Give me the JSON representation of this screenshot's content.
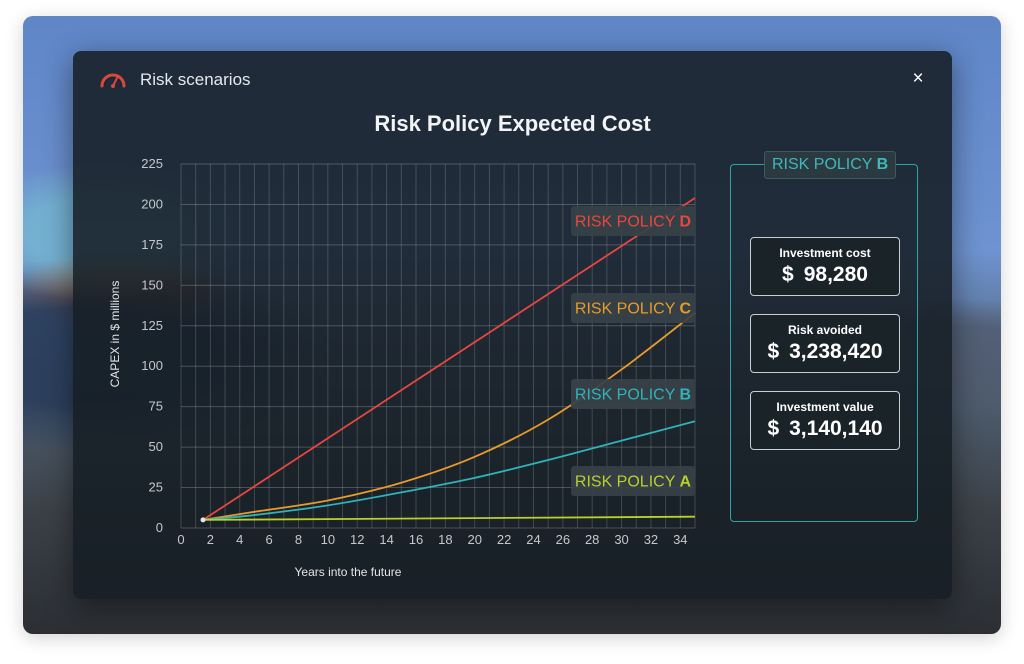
{
  "modal": {
    "title": "Risk scenarios",
    "close_label": "×"
  },
  "chart_data": {
    "type": "line",
    "title": "Risk Policy Expected Cost",
    "xlabel": "Years into the future",
    "ylabel": "CAPEX in $ millions",
    "x_ticks": [
      "0",
      "2",
      "4",
      "6",
      "8",
      "10",
      "12",
      "14",
      "16",
      "18",
      "20",
      "22",
      "24",
      "26",
      "28",
      "30",
      "32",
      "34"
    ],
    "y_ticks": [
      "0",
      "25",
      "50",
      "75",
      "100",
      "125",
      "150",
      "175",
      "200",
      "225"
    ],
    "xlim": [
      0,
      35
    ],
    "ylim": [
      0,
      225
    ],
    "grid": true,
    "series": [
      {
        "name_prefix": "RISK POLICY",
        "name_letter": "D",
        "color": "#e8473f",
        "x": [
          1.5,
          35
        ],
        "y": [
          5,
          204
        ]
      },
      {
        "name_prefix": "RISK POLICY",
        "name_letter": "C",
        "color": "#e89a2a",
        "x": [
          1.5,
          5,
          10,
          15,
          20,
          25,
          30,
          35
        ],
        "y": [
          5,
          10,
          17,
          28,
          44,
          67,
          98,
          133
        ]
      },
      {
        "name_prefix": "RISK POLICY",
        "name_letter": "B",
        "color": "#2fb3b9",
        "x": [
          1.5,
          5,
          10,
          15,
          20,
          25,
          30,
          35
        ],
        "y": [
          5,
          8,
          14,
          22,
          31,
          42,
          54,
          66
        ]
      },
      {
        "name_prefix": "RISK POLICY",
        "name_letter": "A",
        "color": "#b9cf2c",
        "x": [
          1.5,
          35
        ],
        "y": [
          5,
          7
        ]
      }
    ]
  },
  "side_panel": {
    "badge_prefix": "RISK POLICY",
    "badge_letter": "B",
    "badge_color": "#3fb7bb",
    "metrics": [
      {
        "label": "Investment cost",
        "currency": "$",
        "value": "98,280"
      },
      {
        "label": "Risk avoided",
        "currency": "$",
        "value": "3,238,420"
      },
      {
        "label": "Investment value",
        "currency": "$",
        "value": "3,140,140"
      }
    ]
  }
}
